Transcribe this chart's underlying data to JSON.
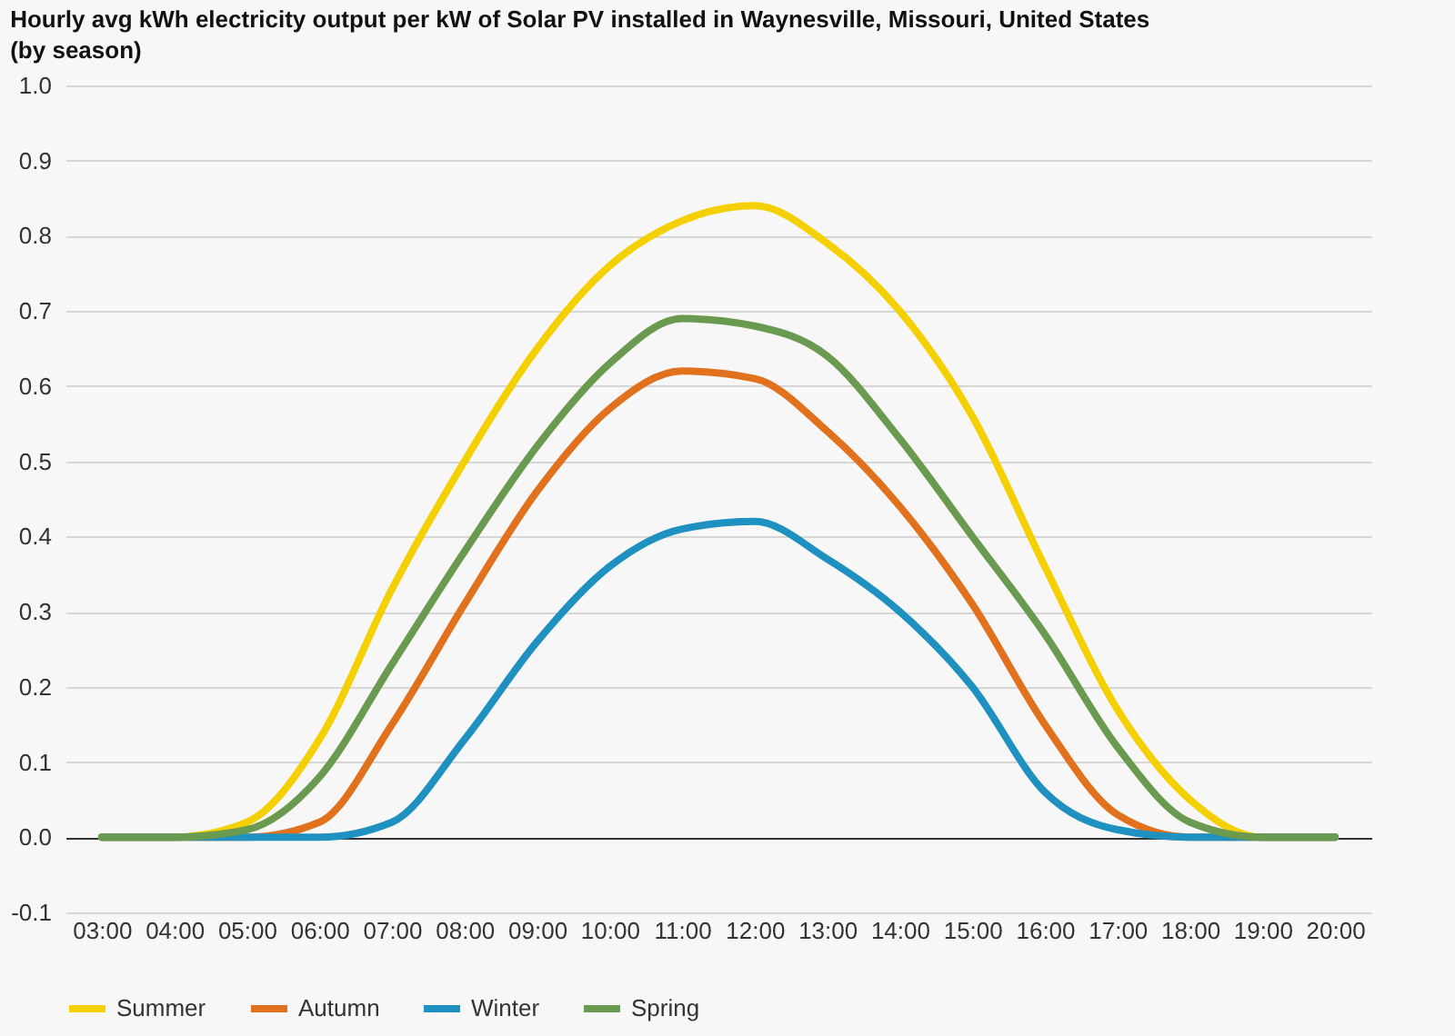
{
  "chart_data": {
    "type": "line",
    "title": "Hourly avg kWh electricity output per kW of Solar PV installed in Waynesville, Missouri, United States (by season)",
    "categories": [
      "03:00",
      "04:00",
      "05:00",
      "06:00",
      "07:00",
      "08:00",
      "09:00",
      "10:00",
      "11:00",
      "12:00",
      "13:00",
      "14:00",
      "15:00",
      "16:00",
      "17:00",
      "18:00",
      "19:00",
      "20:00"
    ],
    "series": [
      {
        "name": "Summer",
        "color": "#f5d000",
        "values": [
          0,
          0,
          0.02,
          0.13,
          0.33,
          0.5,
          0.65,
          0.76,
          0.82,
          0.84,
          0.79,
          0.7,
          0.56,
          0.36,
          0.17,
          0.05,
          0,
          0
        ]
      },
      {
        "name": "Autumn",
        "color": "#e2711d",
        "values": [
          0,
          0,
          0,
          0.02,
          0.15,
          0.31,
          0.46,
          0.57,
          0.62,
          0.61,
          0.54,
          0.44,
          0.31,
          0.15,
          0.03,
          0,
          0,
          0
        ]
      },
      {
        "name": "Winter",
        "color": "#1f91c1",
        "values": [
          0,
          0,
          0,
          0,
          0.02,
          0.13,
          0.26,
          0.36,
          0.41,
          0.42,
          0.37,
          0.3,
          0.2,
          0.06,
          0.01,
          0,
          0,
          0
        ]
      },
      {
        "name": "Spring",
        "color": "#6a9a50",
        "values": [
          0,
          0,
          0.01,
          0.08,
          0.23,
          0.38,
          0.52,
          0.63,
          0.69,
          0.68,
          0.64,
          0.53,
          0.4,
          0.27,
          0.12,
          0.02,
          0,
          0
        ]
      }
    ],
    "ylim": [
      -0.1,
      1.0
    ],
    "yticks": [
      -0.1,
      {
        "value": 0,
        "label": "0.0"
      },
      0.1,
      0.2,
      0.3,
      0.4,
      0.5,
      0.6,
      0.7,
      0.8,
      0.9,
      {
        "value": 1,
        "label": "1.0"
      }
    ],
    "grid": "y",
    "legend": "bottom",
    "marker": "none",
    "line_style": "solid"
  }
}
